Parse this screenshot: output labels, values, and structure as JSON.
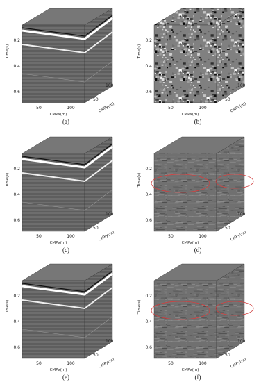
{
  "panels": [
    {
      "caption": "(a)",
      "y_label": "Time(s)",
      "y_ticks": [
        "0.2",
        "0.4",
        "0.6"
      ],
      "x_label": "CMPx(m)",
      "x_ticks": [
        "50",
        "100"
      ],
      "z_label": "CMPy(m)",
      "z_ticks": [
        "50",
        "100"
      ]
    },
    {
      "caption": "(b)",
      "y_label": "Time(s)",
      "y_ticks": [
        "0.2",
        "0.4",
        "0.6"
      ],
      "x_label": "CMPx(m)",
      "x_ticks": [
        "50",
        "100"
      ],
      "z_label": "CMPy(m)",
      "z_ticks": [
        "50",
        "100"
      ]
    },
    {
      "caption": "(c)",
      "y_label": "Time(s)",
      "y_ticks": [
        "0.2",
        "0.4",
        "0.6"
      ],
      "x_label": "CMPx(m)",
      "x_ticks": [
        "50",
        "100"
      ],
      "z_label": "CMPy(m)",
      "z_ticks": [
        "50",
        "100"
      ]
    },
    {
      "caption": "(d)",
      "y_label": "Time(s)",
      "y_ticks": [
        "0.2",
        "0.4",
        "0.6"
      ],
      "x_label": "CMPx(m)",
      "x_ticks": [
        "50",
        "100"
      ],
      "z_label": "CMPy(m)",
      "z_ticks": [
        "50",
        "100"
      ]
    },
    {
      "caption": "(e)",
      "y_label": "Time(s)",
      "y_ticks": [
        "0.2",
        "0.4",
        "0.6"
      ],
      "x_label": "CMPx(m)",
      "x_ticks": [
        "50",
        "100"
      ],
      "z_label": "CMPy(m)",
      "z_ticks": [
        "50",
        "100"
      ]
    },
    {
      "caption": "(f)",
      "y_label": "Time(s)",
      "y_ticks": [
        "0.2",
        "0.4",
        "0.6"
      ],
      "x_label": "CMPx(m)",
      "x_ticks": [
        "50",
        "100"
      ],
      "z_label": "CMPy(m)",
      "z_ticks": [
        "50",
        "100"
      ]
    }
  ]
}
